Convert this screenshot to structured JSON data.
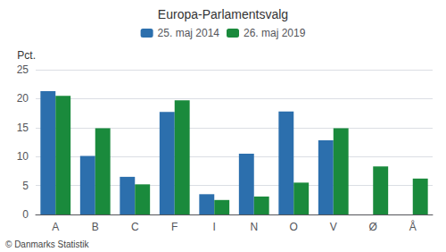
{
  "chart_data": {
    "type": "bar",
    "title": "Europa-Parlamentsvalg",
    "categories": [
      "A",
      "B",
      "C",
      "F",
      "I",
      "N",
      "O",
      "V",
      "Ø",
      "Å"
    ],
    "series": [
      {
        "name": "25. maj 2014",
        "color": "#2c6fad",
        "values": [
          21.3,
          10.1,
          6.5,
          17.7,
          3.5,
          10.5,
          17.8,
          12.8,
          0.0,
          0.0
        ]
      },
      {
        "name": "26. maj 2019",
        "color": "#1a8a3c",
        "values": [
          20.5,
          14.9,
          5.2,
          19.7,
          2.5,
          3.1,
          5.5,
          14.9,
          8.3,
          6.2
        ]
      }
    ],
    "ylabel": "Pct.",
    "annotation": "© Danmarks Statistik",
    "ylim": [
      0,
      25
    ],
    "yticks": [
      0,
      5,
      10,
      15,
      20,
      25
    ],
    "grid": true,
    "legend": "top"
  }
}
